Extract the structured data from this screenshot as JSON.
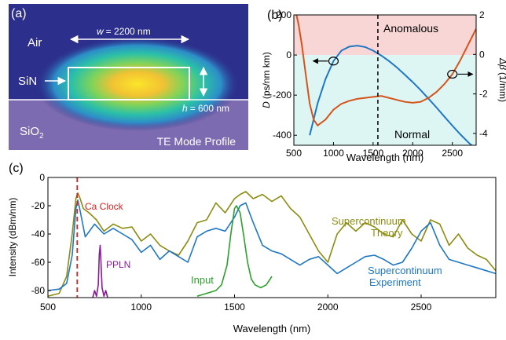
{
  "panel_a": {
    "label": "(a)",
    "air_label": "Air",
    "sin_label": "SiN",
    "sio2_label": "SiO",
    "sio2_sub": "2",
    "width_annot": "= 2200 nm",
    "width_var": "w",
    "height_annot": "= 600 nm",
    "height_var": "h",
    "mode_caption": "TE Mode Profile",
    "colors": {
      "air": "#2c2f8c",
      "sio2": "#7c6bb0",
      "core_hot": "#f7e62a",
      "core_mid": "#27c9a0"
    }
  },
  "chart_data": [
    {
      "id": "b",
      "type": "line",
      "label": "(b)",
      "xlabel": "Wavelength (nm)",
      "ylabel_left": "D (ps/nm km)",
      "ylabel_left_var": "D",
      "ylabel_left_unit": "(ps/nm km)",
      "ylabel_right": "Δβ (1/mm)",
      "ylabel_right_var": "Δβ",
      "ylabel_right_unit": "(1/mm)",
      "xlim": [
        500,
        2800
      ],
      "ylim_left": [
        -450,
        200
      ],
      "ylim_right": [
        -4.6,
        2
      ],
      "xticks": [
        500,
        1000,
        1500,
        2000,
        2500
      ],
      "yticks_left": [
        -400,
        -200,
        0,
        200
      ],
      "yticks_right": [
        -4,
        -2,
        0,
        2
      ],
      "regions": [
        {
          "name": "Anomalous",
          "from": 0,
          "to": 200,
          "color": "#f9d6d6"
        },
        {
          "name": "Normal",
          "from": -450,
          "to": 0,
          "color": "#ddf6f4"
        }
      ],
      "vline_x": 1560,
      "series": [
        {
          "axis": "left",
          "color": "#1f77c4",
          "x": [
            700,
            800,
            900,
            1000,
            1100,
            1200,
            1300,
            1400,
            1500,
            1600,
            1700,
            1800,
            1900,
            2000,
            2100,
            2200,
            2300,
            2400,
            2500,
            2600,
            2700,
            2800
          ],
          "y": [
            -400,
            -240,
            -120,
            -30,
            22,
            42,
            47,
            40,
            22,
            -2,
            -30,
            -62,
            -98,
            -135,
            -175,
            -218,
            -262,
            -308,
            -352,
            -395,
            -435,
            -470
          ]
        },
        {
          "axis": "right",
          "color": "#d4541b",
          "x": [
            500,
            560,
            600,
            650,
            700,
            750,
            800,
            900,
            1000,
            1100,
            1200,
            1300,
            1400,
            1500,
            1600,
            1700,
            1800,
            1900,
            2000,
            2100,
            2200,
            2300,
            2400,
            2500,
            2600,
            2700,
            2800
          ],
          "y": [
            2.6,
            1.5,
            0.5,
            -1.0,
            -2.5,
            -3.3,
            -3.6,
            -3.3,
            -2.8,
            -2.5,
            -2.35,
            -2.25,
            -2.2,
            -2.15,
            -2.1,
            -2.2,
            -2.3,
            -2.4,
            -2.45,
            -2.4,
            -2.2,
            -1.9,
            -1.5,
            -1.0,
            -0.3,
            0.5,
            1.3
          ]
        }
      ],
      "annotations": [
        "Anomalous",
        "Normal"
      ]
    },
    {
      "id": "c",
      "type": "line",
      "label": "(c)",
      "xlabel": "Wavelength (nm)",
      "ylabel": "Intensity (dBm/nm)",
      "xlim": [
        500,
        2900
      ],
      "ylim": [
        -85,
        0
      ],
      "xticks": [
        500,
        1000,
        1500,
        2000,
        2500
      ],
      "yticks": [
        -80,
        -60,
        -40,
        -20,
        0
      ],
      "vline": {
        "x": 657,
        "label": "Ca Clock",
        "color": "#e02020"
      },
      "series": [
        {
          "name": "Supercontinuum Theory",
          "label_line1": "Supercontinuum",
          "label_line2": "Theory",
          "color": "#8c8c12",
          "x": [
            500,
            560,
            600,
            630,
            650,
            660,
            670,
            690,
            720,
            760,
            800,
            850,
            900,
            950,
            1000,
            1050,
            1100,
            1150,
            1200,
            1250,
            1300,
            1350,
            1400,
            1450,
            1500,
            1530,
            1560,
            1600,
            1650,
            1700,
            1750,
            1800,
            1850,
            1900,
            1950,
            2000,
            2050,
            2100,
            2150,
            2200,
            2250,
            2300,
            2350,
            2400,
            2450,
            2500,
            2550,
            2600,
            2650,
            2700,
            2750,
            2800,
            2850,
            2900
          ],
          "y": [
            -84,
            -82,
            -70,
            -40,
            -15,
            -11,
            -14,
            -22,
            -25,
            -30,
            -38,
            -33,
            -36,
            -35,
            -45,
            -40,
            -48,
            -52,
            -55,
            -45,
            -32,
            -30,
            -18,
            -25,
            -15,
            -12,
            -10,
            -15,
            -12,
            -17,
            -13,
            -22,
            -28,
            -40,
            -52,
            -60,
            -40,
            -32,
            -38,
            -32,
            -35,
            -40,
            -42,
            -30,
            -40,
            -45,
            -30,
            -33,
            -48,
            -40,
            -50,
            -55,
            -58,
            -66
          ]
        },
        {
          "name": "Supercontinuum Experiment",
          "label_line1": "Supercontinuum",
          "label_line2": "Experiment",
          "color": "#1f77c4",
          "x": [
            500,
            560,
            600,
            630,
            650,
            660,
            670,
            700,
            750,
            800,
            850,
            900,
            950,
            1000,
            1050,
            1100,
            1150,
            1200,
            1250,
            1300,
            1350,
            1400,
            1450,
            1500,
            1530,
            1560,
            1600,
            1650,
            1700,
            1750,
            1800,
            1850,
            1900,
            1950,
            2000,
            2050,
            2100,
            2150,
            2200,
            2250,
            2300,
            2350,
            2400,
            2450,
            2500,
            2550,
            2600,
            2650,
            2700,
            2750,
            2800,
            2850,
            2900
          ],
          "y": [
            -80,
            -79,
            -75,
            -55,
            -22,
            -16,
            -22,
            -42,
            -33,
            -40,
            -36,
            -40,
            -44,
            -53,
            -48,
            -58,
            -52,
            -56,
            -60,
            -42,
            -38,
            -36,
            -38,
            -28,
            -20,
            -18,
            -32,
            -48,
            -52,
            -54,
            -58,
            -62,
            -58,
            -56,
            -62,
            -68,
            -64,
            -60,
            -56,
            -55,
            -58,
            -62,
            -60,
            -50,
            -38,
            -32,
            -48,
            -58,
            -60,
            -62,
            -64,
            -66,
            -68
          ]
        },
        {
          "name": "Input",
          "label": "Input",
          "color": "#2ca02c",
          "x": [
            1300,
            1350,
            1400,
            1430,
            1460,
            1480,
            1500,
            1510,
            1530,
            1550,
            1570,
            1590,
            1610,
            1640,
            1670,
            1700
          ],
          "y": [
            -84,
            -82,
            -80,
            -76,
            -62,
            -40,
            -22,
            -20,
            -25,
            -42,
            -60,
            -72,
            -76,
            -78,
            -76,
            -70
          ]
        },
        {
          "name": "PPLN",
          "label": "PPLN",
          "color": "#8b1a9b",
          "x": [
            740,
            750,
            760,
            770,
            775,
            780,
            785,
            790,
            800,
            810,
            820
          ],
          "y": [
            -85,
            -80,
            -84,
            -76,
            -55,
            -48,
            -62,
            -78,
            -84,
            -80,
            -85
          ]
        }
      ]
    }
  ]
}
